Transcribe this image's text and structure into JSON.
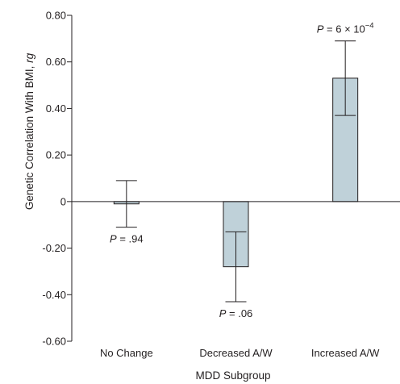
{
  "chart_data": {
    "type": "bar",
    "xlabel": "MDD Subgroup",
    "ylabel": {
      "prefix": "Genetic Correlation With BMI, ",
      "symbol": "rg"
    },
    "ylim": [
      -0.6,
      0.8
    ],
    "yticks": [
      {
        "value": 0.8,
        "label": "0.80"
      },
      {
        "value": 0.6,
        "label": "0.60"
      },
      {
        "value": 0.4,
        "label": "0.40"
      },
      {
        "value": 0.2,
        "label": "0.20"
      },
      {
        "value": 0,
        "label": "0"
      },
      {
        "value": -0.2,
        "label": "-0.20"
      },
      {
        "value": -0.4,
        "label": "-0.40"
      },
      {
        "value": -0.6,
        "label": "-0.60"
      }
    ],
    "categories": [
      "No Change",
      "Decreased A/W",
      "Increased A/W"
    ],
    "values": [
      -0.01,
      -0.28,
      0.53
    ],
    "error_low": [
      -0.11,
      -0.43,
      0.37
    ],
    "error_high": [
      0.09,
      -0.13,
      0.69
    ],
    "annotations": [
      {
        "category": "No Change",
        "p": "P",
        "text": " = .94",
        "position": "below"
      },
      {
        "category": "Decreased A/W",
        "p": "P",
        "text": " = .06",
        "position": "below"
      },
      {
        "category": "Increased A/W",
        "p": "P",
        "text": " = 6 × 10",
        "exponent": "−4",
        "position": "above"
      }
    ],
    "bar_color": "#bfd1d9",
    "grid": false
  }
}
